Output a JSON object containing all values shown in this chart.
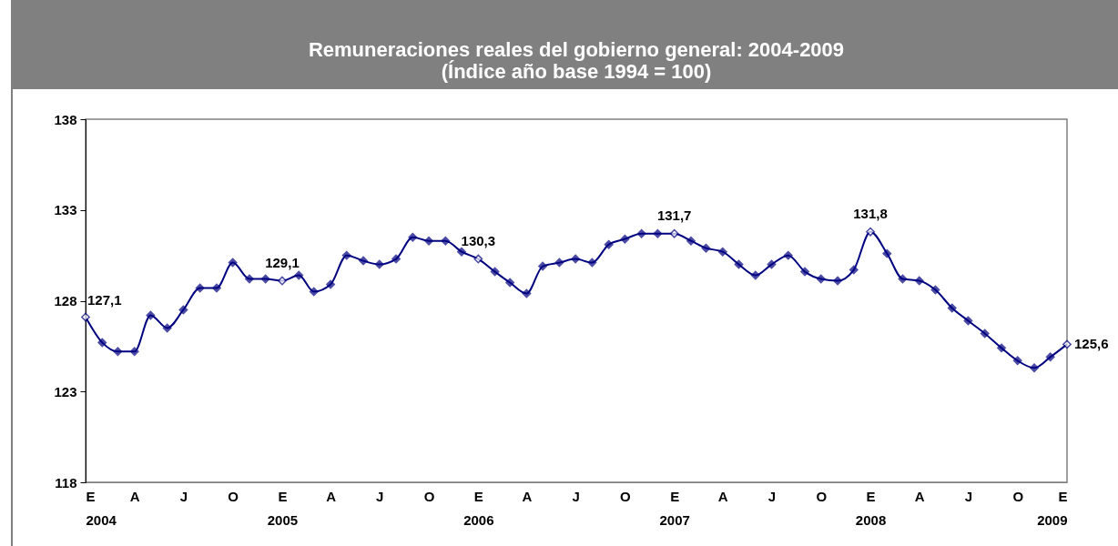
{
  "chart_data": {
    "type": "line",
    "title": "Remuneraciones reales del gobierno general: 2004-2009",
    "subtitle": "(Índice año base 1994 = 100)",
    "x": [
      "2004-01",
      "2004-02",
      "2004-03",
      "2004-04",
      "2004-05",
      "2004-06",
      "2004-07",
      "2004-08",
      "2004-09",
      "2004-10",
      "2004-11",
      "2004-12",
      "2005-01",
      "2005-02",
      "2005-03",
      "2005-04",
      "2005-05",
      "2005-06",
      "2005-07",
      "2005-08",
      "2005-09",
      "2005-10",
      "2005-11",
      "2005-12",
      "2006-01",
      "2006-02",
      "2006-03",
      "2006-04",
      "2006-05",
      "2006-06",
      "2006-07",
      "2006-08",
      "2006-09",
      "2006-10",
      "2006-11",
      "2006-12",
      "2007-01",
      "2007-02",
      "2007-03",
      "2007-04",
      "2007-05",
      "2007-06",
      "2007-07",
      "2007-08",
      "2007-09",
      "2007-10",
      "2007-11",
      "2007-12",
      "2008-01",
      "2008-02",
      "2008-03",
      "2008-04",
      "2008-05",
      "2008-06",
      "2008-07",
      "2008-08",
      "2008-09",
      "2008-10",
      "2008-11",
      "2008-12",
      "2009-01"
    ],
    "series": [
      {
        "color": "#000080",
        "values": [
          127.1,
          125.7,
          125.2,
          125.2,
          127.2,
          126.5,
          127.5,
          128.7,
          128.7,
          130.1,
          129.2,
          129.2,
          129.1,
          129.4,
          128.5,
          128.9,
          130.5,
          130.2,
          130.0,
          130.3,
          131.5,
          131.3,
          131.3,
          130.7,
          130.3,
          129.6,
          129.0,
          128.4,
          129.9,
          130.1,
          130.3,
          130.1,
          131.1,
          131.4,
          131.7,
          131.7,
          131.7,
          131.3,
          130.9,
          130.7,
          130.0,
          129.4,
          130.0,
          130.5,
          129.6,
          129.2,
          129.1,
          129.7,
          131.8,
          130.6,
          129.2,
          129.1,
          128.6,
          127.6,
          126.9,
          126.2,
          125.4,
          124.7,
          124.3,
          124.9,
          125.6
        ],
        "value_labels": [
          "127,1",
          null,
          null,
          null,
          null,
          null,
          null,
          null,
          null,
          null,
          null,
          null,
          "129,1",
          null,
          null,
          null,
          null,
          null,
          null,
          null,
          null,
          null,
          null,
          null,
          "130,3",
          null,
          null,
          null,
          null,
          null,
          null,
          null,
          null,
          null,
          null,
          null,
          "131,7",
          null,
          null,
          null,
          null,
          null,
          null,
          null,
          null,
          null,
          null,
          null,
          "131,8",
          null,
          null,
          null,
          null,
          null,
          null,
          null,
          null,
          null,
          null,
          null,
          "125,6"
        ]
      }
    ],
    "xlim": [
      "2004-01",
      "2009-01"
    ],
    "xticks": [
      {
        "value": "2004-01",
        "label": "E\n2004"
      },
      {
        "value": "2004-04",
        "label": "A"
      },
      {
        "value": "2004-07",
        "label": "J"
      },
      {
        "value": "2004-10",
        "label": "O"
      },
      {
        "value": "2005-01",
        "label": "E\n2005"
      },
      {
        "value": "2005-04",
        "label": "A"
      },
      {
        "value": "2005-07",
        "label": "J"
      },
      {
        "value": "2005-10",
        "label": "O"
      },
      {
        "value": "2006-01",
        "label": "E\n2006"
      },
      {
        "value": "2006-04",
        "label": "A"
      },
      {
        "value": "2006-07",
        "label": "J"
      },
      {
        "value": "2006-10",
        "label": "O"
      },
      {
        "value": "2007-01",
        "label": "E\n2007"
      },
      {
        "value": "2007-04",
        "label": "A"
      },
      {
        "value": "2007-07",
        "label": "J"
      },
      {
        "value": "2007-10",
        "label": "O"
      },
      {
        "value": "2008-01",
        "label": "E\n2008"
      },
      {
        "value": "2008-04",
        "label": "A"
      },
      {
        "value": "2008-07",
        "label": "J"
      },
      {
        "value": "2008-10",
        "label": "O"
      },
      {
        "value": "2009-01",
        "label": "E\n2009"
      }
    ],
    "ylim": [
      118,
      138
    ],
    "yticks": [
      118,
      123,
      128,
      133,
      138
    ],
    "grid": false,
    "marker": "diamond",
    "line_style": "solid"
  }
}
